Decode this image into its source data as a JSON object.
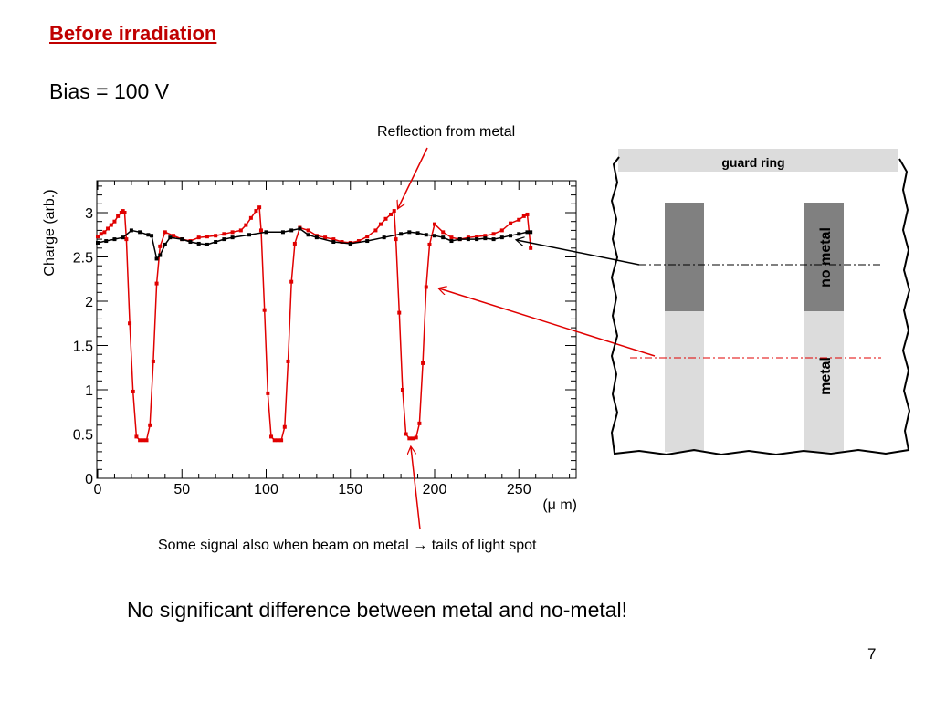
{
  "slide": {
    "title": "Before irradiation",
    "bias": "Bias = 100 V",
    "annotation_top": "Reflection from metal",
    "annotation_bottom_1": "Some signal also when beam on metal",
    "annotation_bottom_arrow": "→",
    "annotation_bottom_2": "tails of light spot",
    "conclusion": "No significant difference between metal and no-metal!",
    "page_number": "7"
  },
  "diagram": {
    "guard_ring_label": "guard ring",
    "no_metal_label": "no metal",
    "metal_label": "metal"
  },
  "colors": {
    "red_series": "#e00000",
    "black_series": "#000000",
    "title_red": "#c00000",
    "dark_strip": "#808080",
    "light_strip": "#dcdcdc"
  },
  "chart_data": {
    "type": "line",
    "title": "",
    "xlabel": "(μ m)",
    "ylabel": "Charge (arb.)",
    "xlim": [
      0,
      285
    ],
    "ylim": [
      0,
      3.35
    ],
    "x_ticks": [
      "0",
      "50",
      "100",
      "150",
      "200",
      "250"
    ],
    "y_ticks": [
      "0",
      "0.5",
      "1",
      "1.5",
      "2",
      "2.5",
      "3"
    ],
    "grid": false,
    "series": [
      {
        "color": "#e00000",
        "points": [
          [
            0,
            2.73
          ],
          [
            2,
            2.76
          ],
          [
            4,
            2.78
          ],
          [
            6,
            2.82
          ],
          [
            8,
            2.86
          ],
          [
            10,
            2.9
          ],
          [
            12,
            2.96
          ],
          [
            14,
            3.0
          ],
          [
            15,
            3.02
          ],
          [
            16,
            3.0
          ],
          [
            17,
            2.7
          ],
          [
            19,
            1.75
          ],
          [
            21,
            0.98
          ],
          [
            23,
            0.47
          ],
          [
            25,
            0.43
          ],
          [
            27,
            0.43
          ],
          [
            29,
            0.43
          ],
          [
            31,
            0.6
          ],
          [
            33,
            1.32
          ],
          [
            35,
            2.2
          ],
          [
            37,
            2.62
          ],
          [
            40,
            2.78
          ],
          [
            45,
            2.74
          ],
          [
            50,
            2.7
          ],
          [
            55,
            2.68
          ],
          [
            60,
            2.72
          ],
          [
            65,
            2.73
          ],
          [
            70,
            2.74
          ],
          [
            75,
            2.76
          ],
          [
            80,
            2.78
          ],
          [
            85,
            2.8
          ],
          [
            88,
            2.86
          ],
          [
            91,
            2.94
          ],
          [
            94,
            3.02
          ],
          [
            96,
            3.06
          ],
          [
            97,
            2.8
          ],
          [
            99,
            1.9
          ],
          [
            101,
            0.96
          ],
          [
            103,
            0.47
          ],
          [
            105,
            0.43
          ],
          [
            107,
            0.43
          ],
          [
            109,
            0.43
          ],
          [
            111,
            0.58
          ],
          [
            113,
            1.32
          ],
          [
            115,
            2.22
          ],
          [
            117,
            2.65
          ],
          [
            120,
            2.83
          ],
          [
            125,
            2.8
          ],
          [
            130,
            2.74
          ],
          [
            135,
            2.72
          ],
          [
            140,
            2.7
          ],
          [
            145,
            2.67
          ],
          [
            150,
            2.66
          ],
          [
            155,
            2.68
          ],
          [
            160,
            2.73
          ],
          [
            165,
            2.8
          ],
          [
            168,
            2.87
          ],
          [
            171,
            2.93
          ],
          [
            174,
            2.98
          ],
          [
            176,
            3.02
          ],
          [
            177,
            2.7
          ],
          [
            179,
            1.87
          ],
          [
            181,
            1.0
          ],
          [
            183,
            0.5
          ],
          [
            185,
            0.45
          ],
          [
            187,
            0.45
          ],
          [
            189,
            0.46
          ],
          [
            191,
            0.62
          ],
          [
            193,
            1.3
          ],
          [
            195,
            2.16
          ],
          [
            197,
            2.64
          ],
          [
            200,
            2.87
          ],
          [
            205,
            2.78
          ],
          [
            210,
            2.72
          ],
          [
            215,
            2.7
          ],
          [
            220,
            2.72
          ],
          [
            225,
            2.73
          ],
          [
            230,
            2.74
          ],
          [
            235,
            2.76
          ],
          [
            240,
            2.8
          ],
          [
            245,
            2.88
          ],
          [
            250,
            2.92
          ],
          [
            253,
            2.96
          ],
          [
            255,
            2.98
          ],
          [
            257,
            2.6
          ]
        ]
      },
      {
        "color": "#000000",
        "points": [
          [
            0,
            2.66
          ],
          [
            5,
            2.68
          ],
          [
            10,
            2.7
          ],
          [
            15,
            2.72
          ],
          [
            20,
            2.8
          ],
          [
            25,
            2.78
          ],
          [
            30,
            2.75
          ],
          [
            32,
            2.74
          ],
          [
            35,
            2.48
          ],
          [
            37,
            2.52
          ],
          [
            40,
            2.64
          ],
          [
            43,
            2.72
          ],
          [
            50,
            2.7
          ],
          [
            55,
            2.67
          ],
          [
            60,
            2.65
          ],
          [
            65,
            2.64
          ],
          [
            70,
            2.67
          ],
          [
            75,
            2.7
          ],
          [
            80,
            2.72
          ],
          [
            90,
            2.75
          ],
          [
            100,
            2.78
          ],
          [
            110,
            2.78
          ],
          [
            115,
            2.8
          ],
          [
            120,
            2.82
          ],
          [
            125,
            2.75
          ],
          [
            130,
            2.72
          ],
          [
            140,
            2.67
          ],
          [
            150,
            2.65
          ],
          [
            160,
            2.68
          ],
          [
            170,
            2.72
          ],
          [
            180,
            2.76
          ],
          [
            185,
            2.78
          ],
          [
            190,
            2.77
          ],
          [
            195,
            2.75
          ],
          [
            200,
            2.74
          ],
          [
            205,
            2.72
          ],
          [
            210,
            2.68
          ],
          [
            215,
            2.7
          ],
          [
            220,
            2.7
          ],
          [
            225,
            2.7
          ],
          [
            230,
            2.71
          ],
          [
            235,
            2.7
          ],
          [
            240,
            2.72
          ],
          [
            245,
            2.74
          ],
          [
            250,
            2.76
          ],
          [
            255,
            2.78
          ],
          [
            257,
            2.78
          ]
        ]
      }
    ]
  }
}
